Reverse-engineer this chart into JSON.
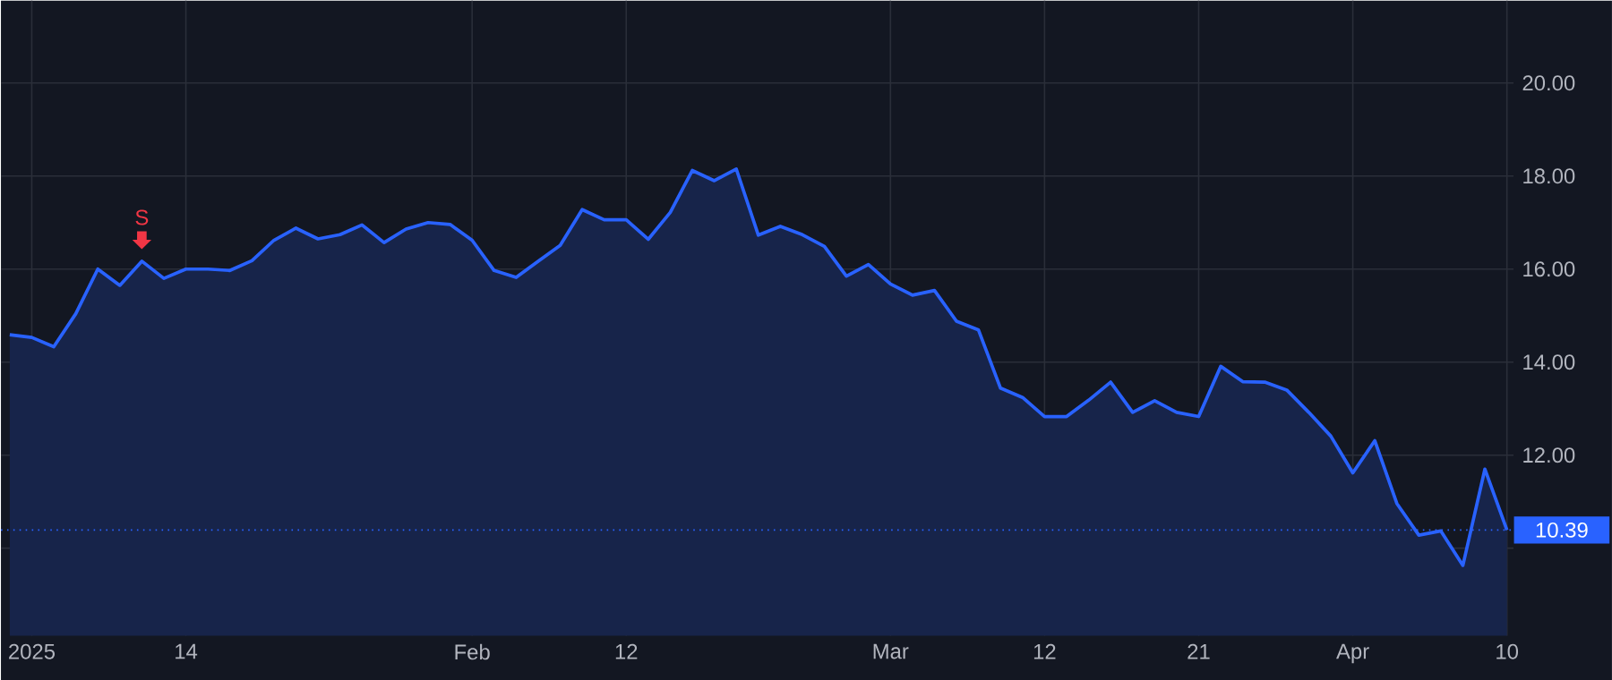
{
  "chart_data": {
    "type": "area",
    "categories": [
      null,
      "2025",
      null,
      null,
      null,
      null,
      null,
      null,
      "14",
      null,
      null,
      null,
      null,
      null,
      null,
      null,
      null,
      null,
      null,
      null,
      null,
      "Feb",
      null,
      null,
      null,
      null,
      null,
      null,
      "12",
      null,
      null,
      null,
      null,
      null,
      null,
      null,
      null,
      null,
      null,
      null,
      "Mar",
      null,
      null,
      null,
      null,
      null,
      null,
      "12",
      null,
      null,
      null,
      null,
      null,
      null,
      "21",
      null,
      null,
      null,
      null,
      null,
      null,
      "Apr",
      null,
      null,
      null,
      null,
      null,
      null,
      "10"
    ],
    "series": [
      {
        "color": "#2962ff",
        "values": [
          14.59,
          14.53,
          14.33,
          15.04,
          16.0,
          15.65,
          16.17,
          15.8,
          16.0,
          16.0,
          15.97,
          16.18,
          16.62,
          16.88,
          16.65,
          16.74,
          16.95,
          16.57,
          16.86,
          17.0,
          16.96,
          16.62,
          15.97,
          15.82,
          16.17,
          16.51,
          17.28,
          17.06,
          17.06,
          16.64,
          17.22,
          18.12,
          17.9,
          18.15,
          16.73,
          16.92,
          16.74,
          16.49,
          15.85,
          16.1,
          15.68,
          15.44,
          15.54,
          14.88,
          14.69,
          13.44,
          13.24,
          12.83,
          12.83,
          13.18,
          13.57,
          12.92,
          13.17,
          12.92,
          12.83,
          13.91,
          13.58,
          13.57,
          13.4,
          12.92,
          12.41,
          11.62,
          12.31,
          10.96,
          10.28,
          10.37,
          9.63,
          11.7,
          10.39
        ]
      }
    ],
    "ylim": [
      8.12,
      21.77
    ],
    "yticks": [
      {
        "value": 10,
        "label": null
      },
      {
        "value": 12,
        "label": "12.00"
      },
      {
        "value": 14,
        "label": "14.00"
      },
      {
        "value": 16,
        "label": "16.00"
      },
      {
        "value": 18,
        "label": "18.00"
      },
      {
        "value": 20,
        "label": "20.00"
      }
    ],
    "grid": true,
    "ref_lines": [
      {
        "axis": "y",
        "value": 10.39,
        "label": "10.39",
        "color": "#2962ff",
        "line_style": "dotted"
      }
    ],
    "annotations": [
      {
        "text": "S",
        "y": 16.17
      }
    ]
  }
}
